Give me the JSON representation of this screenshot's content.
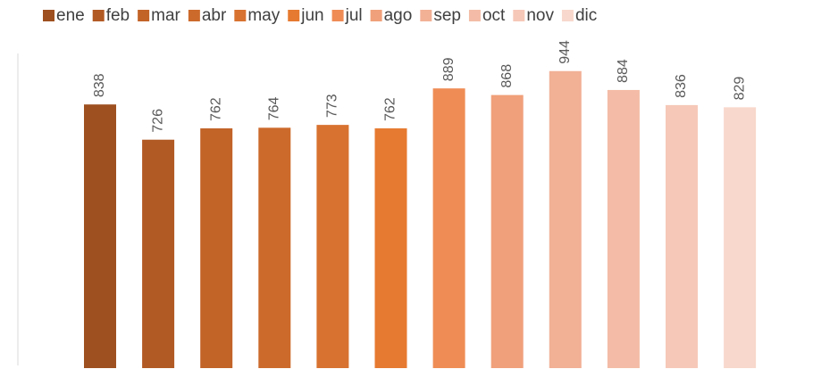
{
  "chart_data": {
    "type": "bar",
    "series": [
      {
        "name": "ene",
        "color": "#9e5020",
        "values": [
          838
        ]
      },
      {
        "name": "feb",
        "color": "#b25a24",
        "values": [
          726
        ]
      },
      {
        "name": "mar",
        "color": "#c26328",
        "values": [
          762
        ]
      },
      {
        "name": "abr",
        "color": "#cc6a2c",
        "values": [
          764
        ]
      },
      {
        "name": "may",
        "color": "#d87230",
        "values": [
          773
        ]
      },
      {
        "name": "jun",
        "color": "#e67a30",
        "values": [
          762
        ]
      },
      {
        "name": "jul",
        "color": "#ef8c55",
        "values": [
          889
        ]
      },
      {
        "name": "ago",
        "color": "#f0a07a",
        "values": [
          868
        ]
      },
      {
        "name": "sep",
        "color": "#f2b095",
        "values": [
          944
        ]
      },
      {
        "name": "oct",
        "color": "#f4bca6",
        "values": [
          884
        ]
      },
      {
        "name": "nov",
        "color": "#f6c8b8",
        "values": [
          836
        ]
      },
      {
        "name": "dic",
        "color": "#f8d8cc",
        "values": [
          829
        ]
      }
    ],
    "ylim": [
      0,
      1000
    ],
    "legend": "top"
  }
}
